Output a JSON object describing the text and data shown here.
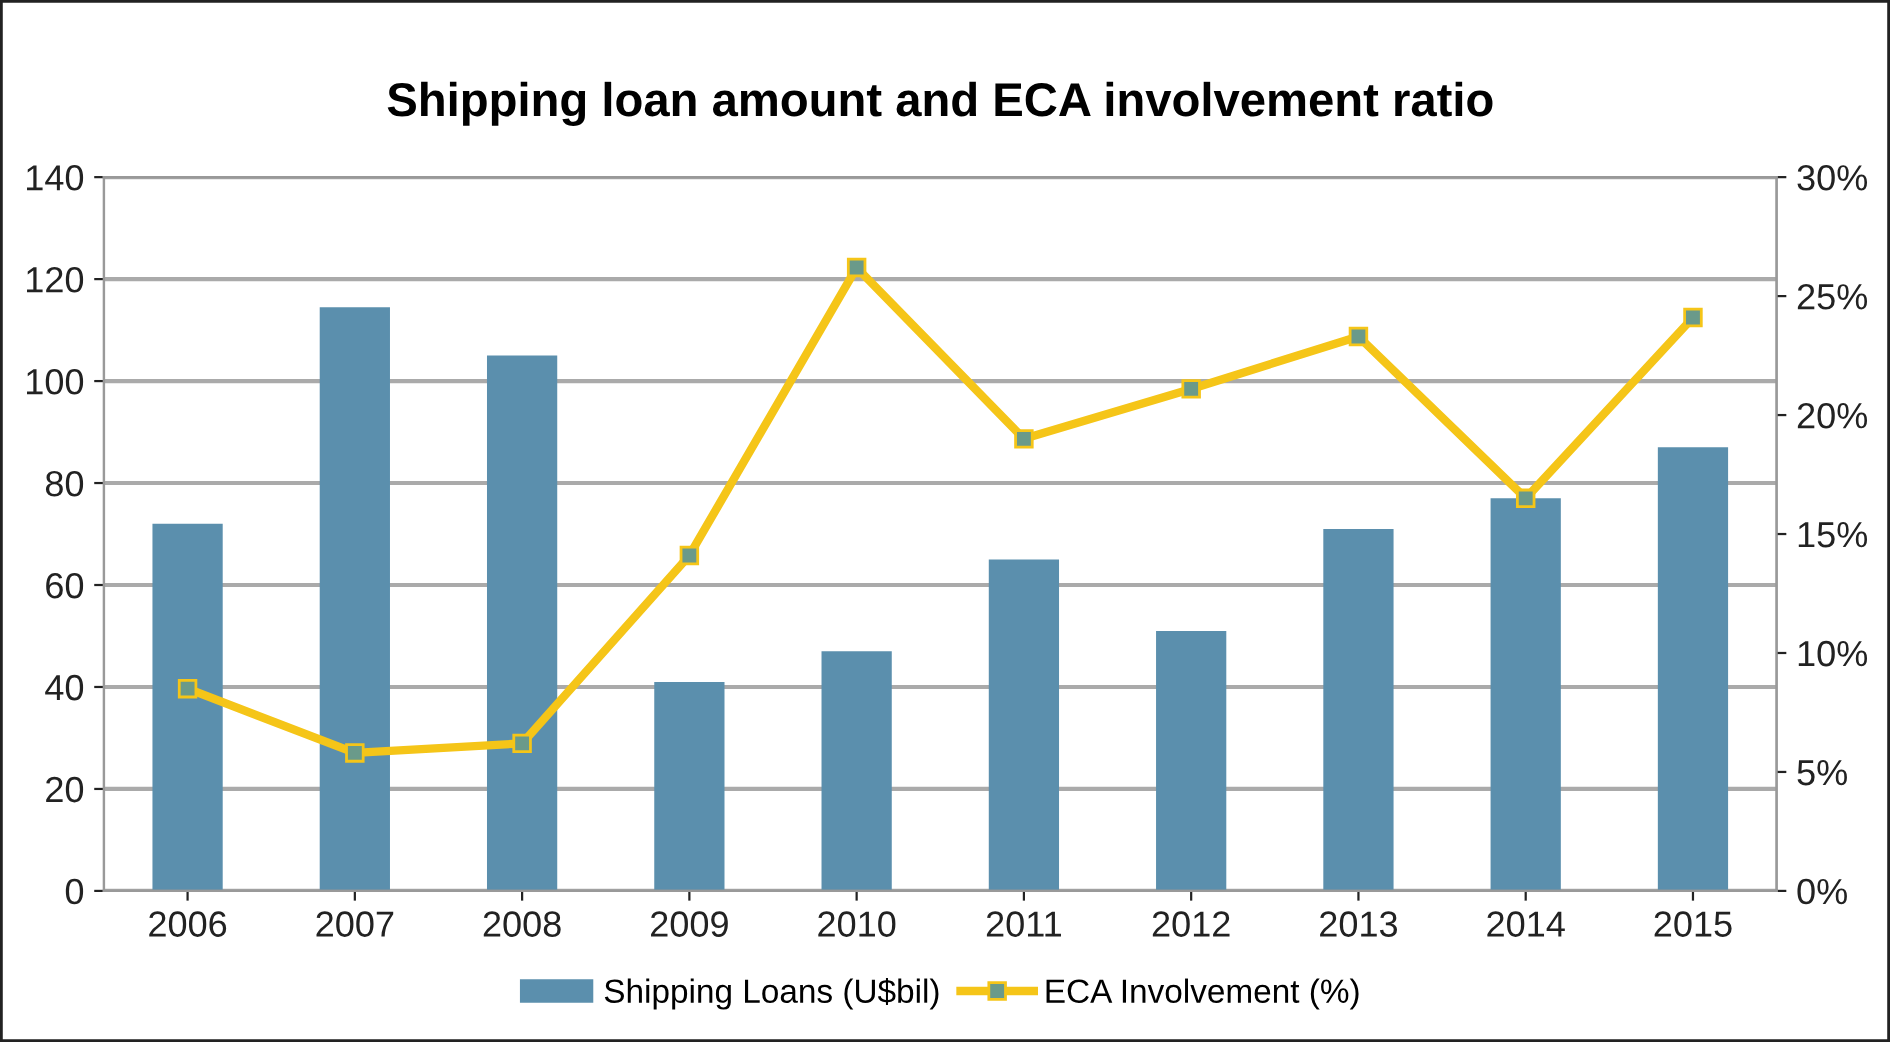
{
  "chart_data": {
    "type": "bar",
    "title": "Shipping loan amount and ECA involvement ratio",
    "categories": [
      "2006",
      "2007",
      "2008",
      "2009",
      "2010",
      "2011",
      "2012",
      "2013",
      "2014",
      "2015"
    ],
    "series": [
      {
        "name": "Shipping Loans (U$bil)",
        "color": "#5b8fad",
        "values": [
          72,
          114.5,
          105,
          41,
          47,
          65,
          51,
          71,
          77,
          87
        ]
      },
      {
        "name": "ECA Involvement (%)",
        "type": "line",
        "axis": "y2",
        "color": "#f5c518",
        "marker": "square",
        "line_style": "solid",
        "values": [
          8.5,
          5.8,
          6.2,
          14.1,
          26.2,
          19.0,
          21.1,
          23.3,
          16.5,
          24.1
        ]
      }
    ],
    "ylim": [
      0,
      140
    ],
    "yticks": [
      0,
      20,
      40,
      60,
      80,
      100,
      120,
      140
    ],
    "y2lim": [
      0,
      30
    ],
    "y2ticks": [
      {
        "value": 0,
        "label": "0%"
      },
      {
        "value": 5,
        "label": "5%"
      },
      {
        "value": 10,
        "label": "10%"
      },
      {
        "value": 15,
        "label": "15%"
      },
      {
        "value": 20,
        "label": "20%"
      },
      {
        "value": 25,
        "label": "25%"
      },
      {
        "value": 30,
        "label": "30%"
      }
    ],
    "grid": "y",
    "legend": "bottom"
  }
}
